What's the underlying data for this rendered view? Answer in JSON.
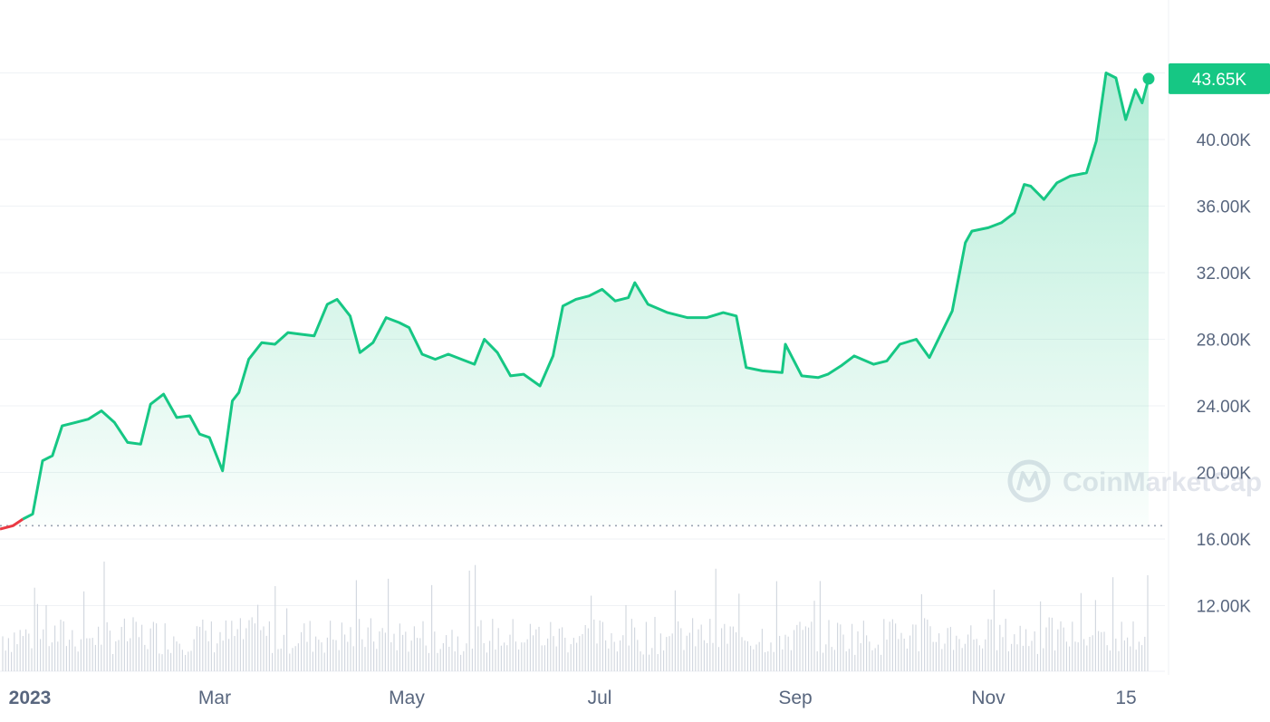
{
  "chart_data": {
    "type": "area",
    "y_ticks": [
      "12.00K",
      "16.00K",
      "20.00K",
      "24.00K",
      "28.00K",
      "32.00K",
      "36.00K",
      "40.00K"
    ],
    "x_ticks": [
      "2023",
      "Mar",
      "May",
      "Jul",
      "Sep",
      "Nov",
      "15"
    ],
    "ylim": [
      8000,
      48000
    ],
    "baseline_value": 16800,
    "current_price_label": "43.65K",
    "current_price": 43650,
    "watermark": "CoinMarketCap",
    "grid": true,
    "colors": {
      "up": "#16c784",
      "down": "#ea3943",
      "badge": "#16c784",
      "volume": "#d3d8e0"
    },
    "series": [
      {
        "x": [
          "2023-01-01",
          "2023-01-05",
          "2023-01-08",
          "2023-01-11",
          "2023-01-14",
          "2023-01-17",
          "2023-01-20",
          "2023-01-24",
          "2023-01-28",
          "2023-02-01",
          "2023-02-05",
          "2023-02-09",
          "2023-02-13",
          "2023-02-16",
          "2023-02-20",
          "2023-02-24",
          "2023-02-28",
          "2023-03-03",
          "2023-03-06",
          "2023-03-10",
          "2023-03-13",
          "2023-03-15",
          "2023-03-18",
          "2023-03-22",
          "2023-03-26",
          "2023-03-30",
          "2023-04-03",
          "2023-04-07",
          "2023-04-11",
          "2023-04-14",
          "2023-04-18",
          "2023-04-21",
          "2023-04-25",
          "2023-04-29",
          "2023-05-03",
          "2023-05-06",
          "2023-05-10",
          "2023-05-14",
          "2023-05-18",
          "2023-05-22",
          "2023-05-26",
          "2023-05-29",
          "2023-06-02",
          "2023-06-06",
          "2023-06-10",
          "2023-06-15",
          "2023-06-19",
          "2023-06-22",
          "2023-06-26",
          "2023-06-30",
          "2023-07-04",
          "2023-07-08",
          "2023-07-12",
          "2023-07-14",
          "2023-07-18",
          "2023-07-24",
          "2023-07-30",
          "2023-08-05",
          "2023-08-10",
          "2023-08-14",
          "2023-08-17",
          "2023-08-22",
          "2023-08-28",
          "2023-08-29",
          "2023-09-03",
          "2023-09-08",
          "2023-09-11",
          "2023-09-15",
          "2023-09-19",
          "2023-09-25",
          "2023-09-29",
          "2023-10-03",
          "2023-10-08",
          "2023-10-12",
          "2023-10-16",
          "2023-10-19",
          "2023-10-23",
          "2023-10-25",
          "2023-10-30",
          "2023-11-03",
          "2023-11-07",
          "2023-11-10",
          "2023-11-12",
          "2023-11-16",
          "2023-11-20",
          "2023-11-24",
          "2023-11-29",
          "2023-12-02",
          "2023-12-05",
          "2023-12-08",
          "2023-12-11",
          "2023-12-14",
          "2023-12-16",
          "2023-12-18"
        ],
        "values": [
          16600,
          16800,
          17200,
          17500,
          20700,
          21000,
          22800,
          23000,
          23200,
          23700,
          23000,
          21800,
          21700,
          24100,
          24700,
          23300,
          23400,
          22300,
          22100,
          20100,
          24300,
          24800,
          26800,
          27800,
          27700,
          28400,
          28300,
          28200,
          30100,
          30400,
          29400,
          27200,
          27800,
          29300,
          29000,
          28700,
          27100,
          26800,
          27100,
          26800,
          26500,
          28000,
          27200,
          25800,
          25900,
          25200,
          27000,
          30000,
          30400,
          30600,
          31000,
          30300,
          30500,
          31400,
          30100,
          29600,
          29300,
          29300,
          29600,
          29400,
          26300,
          26100,
          26000,
          27700,
          25800,
          25700,
          25900,
          26400,
          27000,
          26500,
          26700,
          27700,
          28000,
          26900,
          28500,
          29700,
          33800,
          34500,
          34700,
          35000,
          35600,
          37300,
          37200,
          36400,
          37400,
          37800,
          38000,
          39900,
          44000,
          43700,
          41200,
          43000,
          42200,
          43650
        ]
      }
    ]
  }
}
